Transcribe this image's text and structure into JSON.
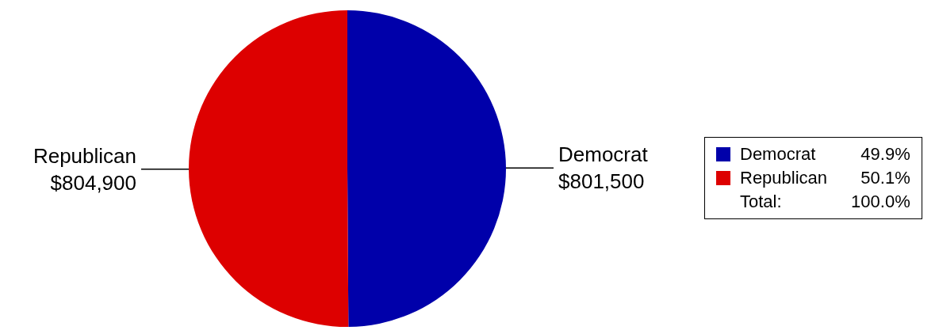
{
  "chart_data": {
    "type": "pie",
    "categories": [
      "Democrat",
      "Republican"
    ],
    "values": [
      801500,
      804900
    ],
    "colors": [
      "#0000aa",
      "#dd0000"
    ],
    "value_labels": [
      "$801,500",
      "$804,900"
    ],
    "legend": "right",
    "annotations": [
      "49.9%",
      "50.1%",
      "Total:",
      "100.0%"
    ]
  }
}
